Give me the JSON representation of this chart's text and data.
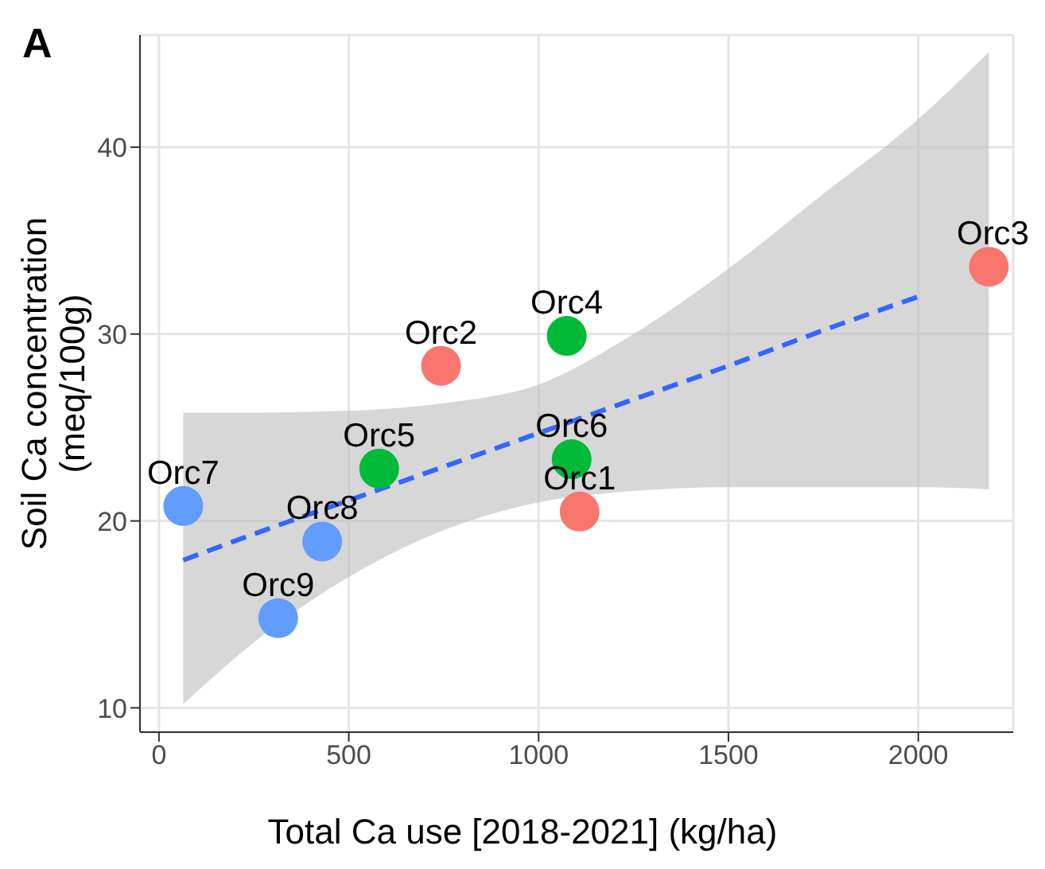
{
  "chart_data": {
    "type": "scatter",
    "title": "A",
    "xlabel": "Total Ca use [2018-2021] (kg/ha)",
    "ylabel": "Soil Ca concentration\n(meq/100g)",
    "x": [
      64,
      430,
      314,
      580,
      743,
      1074,
      1087,
      1108,
      2186
    ],
    "series": [
      {
        "marker": "circle",
        "values": [
          20.8,
          18.9,
          14.8,
          22.8,
          28.3,
          29.9,
          23.3,
          20.5,
          33.6
        ],
        "colors": [
          "#619cff",
          "#619cff",
          "#619cff",
          "#00ba38",
          "#f8766d",
          "#00ba38",
          "#00ba38",
          "#f8766d",
          "#f8766d"
        ]
      },
      {
        "type": "line",
        "color": "#3366ff",
        "line_style": "dashed",
        "x": [
          64,
          250,
          500,
          750,
          1000,
          1250,
          1500,
          1750,
          2000,
          2186
        ],
        "values": [
          17.9,
          19.3,
          21.1,
          22.9,
          24.7,
          26.5,
          28.3,
          30.2,
          32.0,
          null
        ],
        "lower": [
          10.2,
          13.5,
          17.0,
          19.5,
          21.0,
          21.6,
          21.8,
          21.8,
          21.8,
          21.7
        ],
        "upper": [
          25.8,
          25.8,
          25.9,
          26.3,
          27.3,
          30.0,
          33.5,
          37.5,
          41.5,
          45.1
        ]
      }
    ],
    "annotations": [
      {
        "text": "Orc7",
        "x": 64,
        "y": 20.8
      },
      {
        "text": "Orc8",
        "x": 430,
        "y": 18.9
      },
      {
        "text": "Orc9",
        "x": 314,
        "y": 14.8
      },
      {
        "text": "Orc5",
        "x": 580,
        "y": 22.8
      },
      {
        "text": "Orc2",
        "x": 743,
        "y": 28.3
      },
      {
        "text": "Orc4",
        "x": 1074,
        "y": 29.9
      },
      {
        "text": "Orc6",
        "x": 1087,
        "y": 23.3
      },
      {
        "text": "Orc1",
        "x": 1108,
        "y": 20.5
      },
      {
        "text": "Orc3",
        "x": 2186,
        "y": 33.6
      }
    ],
    "xlim": [
      -50,
      2250
    ],
    "ylim": [
      8.7,
      46
    ],
    "xticks": [
      0,
      500,
      1000,
      1500,
      2000
    ],
    "yticks": [
      10,
      20,
      30,
      40
    ],
    "grid": true
  }
}
